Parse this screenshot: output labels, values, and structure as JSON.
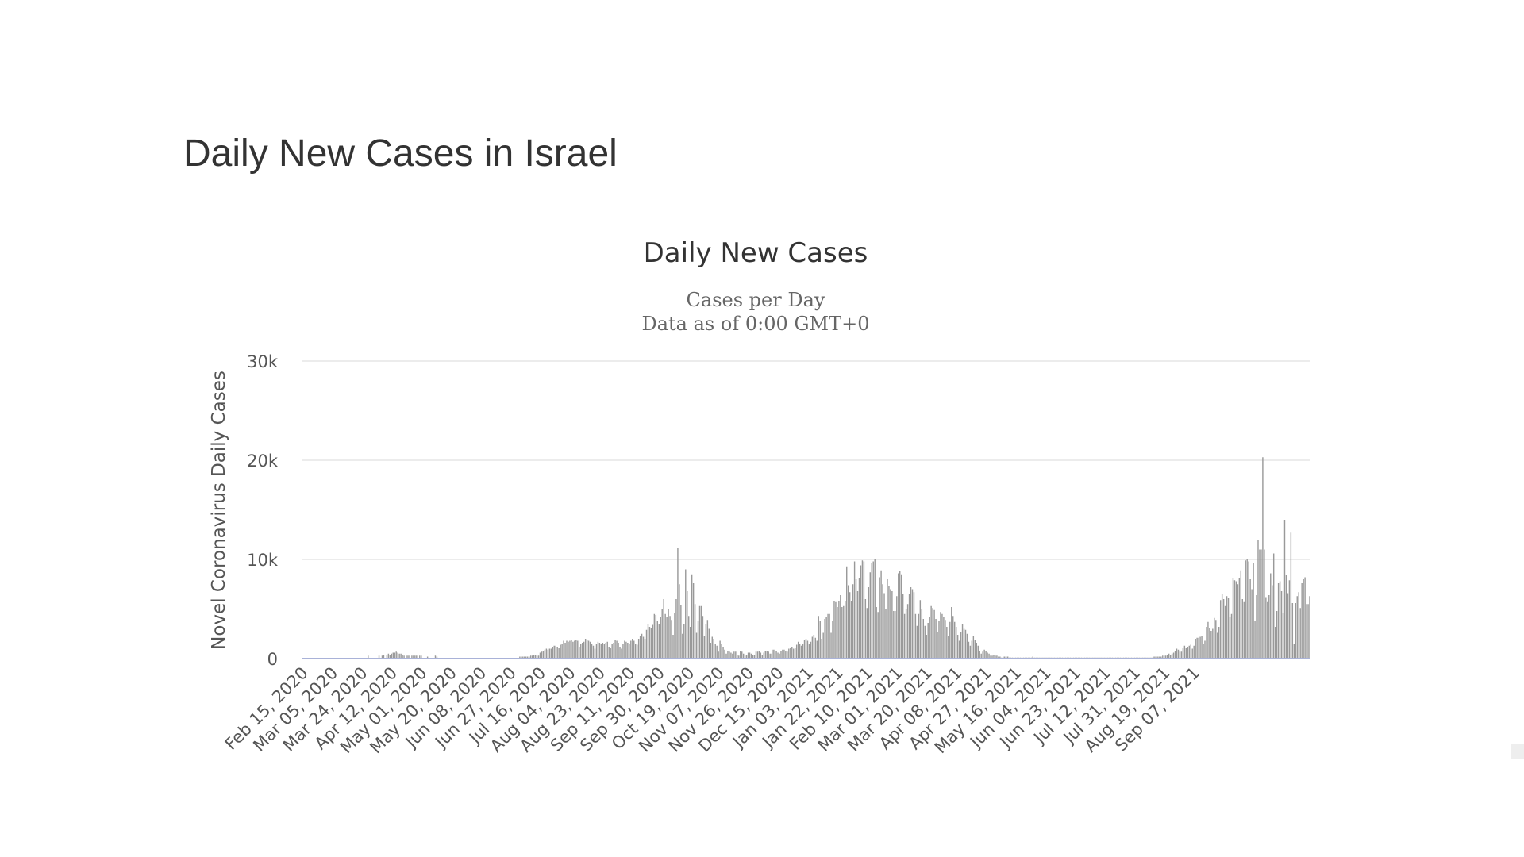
{
  "page": {
    "title": "Daily New Cases in Israel"
  },
  "chart_data": {
    "type": "bar",
    "title": "Daily New Cases",
    "subtitle_lines": [
      "Cases per Day",
      "Data as of 0:00 GMT+0"
    ],
    "ylabel": "Novel Coronavirus Daily Cases",
    "xlabel": "",
    "ylim": [
      0,
      30000
    ],
    "yticks": [
      {
        "value": 0,
        "label": "0"
      },
      {
        "value": 10000,
        "label": "10k"
      },
      {
        "value": 20000,
        "label": "20k"
      },
      {
        "value": 30000,
        "label": "30k"
      }
    ],
    "xtick_labels": [
      "Feb 15, 2020",
      "Mar 05, 2020",
      "Mar 24, 2020",
      "Apr 12, 2020",
      "May 01, 2020",
      "May 20, 2020",
      "Jun 08, 2020",
      "Jun 27, 2020",
      "Jul 16, 2020",
      "Aug 04, 2020",
      "Aug 23, 2020",
      "Sep 11, 2020",
      "Sep 30, 2020",
      "Oct 19, 2020",
      "Nov 07, 2020",
      "Nov 26, 2020",
      "Dec 15, 2020",
      "Jan 03, 2021",
      "Jan 22, 2021",
      "Feb 10, 2021",
      "Mar 01, 2021",
      "Mar 20, 2021",
      "Apr 08, 2021",
      "Apr 27, 2021",
      "May 16, 2021",
      "Jun 04, 2021",
      "Jun 23, 2021",
      "Jul 12, 2021",
      "Jul 31, 2021",
      "Aug 19, 2021",
      "Sep 07, 2021"
    ],
    "x_start": "Feb 15, 2020",
    "x_end": "Sep 23, 2021",
    "grid": true,
    "legend": "none",
    "bar_color": "#999999",
    "values": [
      0,
      0,
      0,
      0,
      0,
      0,
      0,
      0,
      0,
      0,
      0,
      0,
      0,
      0,
      0,
      0,
      0,
      0,
      0,
      0,
      0,
      0,
      0,
      0,
      0,
      0,
      0,
      0,
      0,
      0,
      0,
      0,
      0,
      0,
      0,
      0,
      0,
      0,
      0,
      0,
      0,
      0,
      300,
      0,
      0,
      0,
      0,
      0,
      0,
      300,
      0,
      300,
      400,
      0,
      400,
      500,
      400,
      500,
      600,
      600,
      700,
      600,
      500,
      500,
      400,
      300,
      0,
      300,
      300,
      0,
      300,
      300,
      300,
      300,
      0,
      300,
      300,
      0,
      0,
      0,
      200,
      0,
      0,
      0,
      0,
      300,
      200,
      0,
      0,
      0,
      0,
      0,
      0,
      0,
      0,
      0,
      0,
      0,
      0,
      0,
      0,
      0,
      0,
      0,
      0,
      0,
      0,
      0,
      0,
      0,
      0,
      0,
      0,
      0,
      0,
      0,
      0,
      0,
      0,
      0,
      0,
      0,
      0,
      0,
      0,
      0,
      0,
      0,
      0,
      0,
      0,
      0,
      0,
      0,
      0,
      0,
      0,
      0,
      0,
      200,
      200,
      200,
      200,
      200,
      200,
      200,
      300,
      300,
      400,
      400,
      300,
      300,
      600,
      700,
      800,
      900,
      1000,
      900,
      1000,
      1000,
      1200,
      1300,
      1300,
      1200,
      1100,
      1400,
      1500,
      1800,
      1600,
      1800,
      1700,
      1800,
      1900,
      1700,
      1800,
      1900,
      1800,
      1200,
      1500,
      1600,
      1700,
      2000,
      1900,
      1800,
      1700,
      1500,
      1300,
      1000,
      1500,
      1700,
      1600,
      1500,
      1600,
      1500,
      1600,
      1700,
      1200,
      1100,
      1500,
      1600,
      1900,
      1800,
      1600,
      1200,
      1000,
      1500,
      1800,
      1700,
      1600,
      1500,
      1800,
      2000,
      1800,
      1500,
      1400,
      2000,
      2300,
      2500,
      2200,
      2000,
      2900,
      3500,
      3200,
      3100,
      3400,
      4500,
      4400,
      3800,
      3500,
      4200,
      5000,
      6000,
      4500,
      4200,
      5000,
      4300,
      3900,
      2400,
      4600,
      6000,
      11200,
      7500,
      5400,
      2500,
      3500,
      9000,
      6800,
      4300,
      3200,
      8500,
      7600,
      5500,
      2600,
      3800,
      5300,
      5300,
      4300,
      2300,
      3500,
      3900,
      3000,
      1600,
      2200,
      2000,
      1500,
      1300,
      700,
      1800,
      1500,
      1200,
      900,
      500,
      800,
      700,
      600,
      500,
      700,
      700,
      400,
      300,
      800,
      700,
      500,
      300,
      400,
      600,
      600,
      500,
      400,
      400,
      700,
      700,
      800,
      600,
      400,
      600,
      800,
      800,
      700,
      500,
      500,
      900,
      900,
      800,
      600,
      500,
      800,
      900,
      900,
      800,
      700,
      1000,
      1100,
      1200,
      1000,
      1100,
      1400,
      1700,
      1500,
      1300,
      1500,
      1900,
      2000,
      1800,
      1500,
      1700,
      2200,
      2400,
      2100,
      1800,
      4300,
      3800,
      2000,
      2600,
      4000,
      4200,
      4500,
      4500,
      2600,
      3800,
      5800,
      5700,
      5200,
      5800,
      6400,
      5200,
      5300,
      5800,
      9300,
      7400,
      6700,
      5800,
      7500,
      9800,
      8000,
      6800,
      8100,
      9400,
      9900,
      9800,
      6000,
      5100,
      7200,
      8700,
      9600,
      9800,
      10000,
      5200,
      4700,
      8200,
      8900,
      7500,
      6600,
      5000,
      8000,
      7300,
      7000,
      6800,
      4800,
      4800,
      6300,
      8600,
      8800,
      8500,
      6500,
      4500,
      5000,
      5500,
      6500,
      7200,
      7000,
      6700,
      4500,
      3300,
      4500,
      5900,
      5000,
      4000,
      3300,
      2400,
      3600,
      4200,
      5300,
      5100,
      4900,
      4000,
      2700,
      3800,
      4700,
      4500,
      4200,
      3900,
      3200,
      2300,
      3700,
      5200,
      4300,
      3700,
      3200,
      2400,
      1800,
      2700,
      3500,
      3000,
      2900,
      2500,
      1700,
      1300,
      1800,
      2300,
      1900,
      1600,
      1300,
      800,
      500,
      700,
      900,
      800,
      600,
      500,
      300,
      300,
      400,
      300,
      300,
      200,
      200,
      100,
      200,
      200,
      200,
      200,
      100,
      100,
      100,
      100,
      100,
      100,
      100,
      100,
      100,
      100,
      100,
      100,
      100,
      100,
      100,
      200,
      100,
      100,
      100,
      100,
      100,
      100,
      100,
      100,
      100,
      100,
      100,
      100,
      100,
      100,
      100,
      100,
      100,
      100,
      100,
      100,
      100,
      100,
      100,
      100,
      100,
      100,
      100,
      100,
      100,
      100,
      100,
      100,
      100,
      100,
      100,
      100,
      100,
      100,
      100,
      100,
      100,
      100,
      100,
      100,
      100,
      100,
      100,
      100,
      100,
      100,
      100,
      100,
      100,
      100,
      100,
      100,
      100,
      100,
      100,
      100,
      100,
      100,
      100,
      100,
      100,
      100,
      100,
      100,
      100,
      100,
      100,
      100,
      100,
      100,
      100,
      100,
      200,
      200,
      200,
      200,
      200,
      200,
      300,
      300,
      300,
      400,
      500,
      400,
      500,
      600,
      800,
      1000,
      900,
      700,
      700,
      1100,
      1300,
      1100,
      1200,
      1300,
      1400,
      1000,
      1300,
      2000,
      2100,
      2100,
      2200,
      2300,
      1500,
      1800,
      3200,
      3700,
      3100,
      2800,
      3000,
      4100,
      3900,
      2600,
      3200,
      5900,
      6500,
      6000,
      5300,
      6300,
      6100,
      4200,
      4500,
      8100,
      7900,
      7800,
      7500,
      8100,
      8900,
      6000,
      5700,
      9900,
      10000,
      9800,
      8000,
      7000,
      9600,
      3800,
      6400,
      12000,
      11000,
      11000,
      20300,
      11000,
      6200,
      5700,
      6400,
      8600,
      7400,
      10600,
      3200,
      4800,
      7600,
      7800,
      6800,
      4600,
      14000,
      8400,
      6600,
      7900,
      12700,
      5600,
      1500,
      5600,
      6300,
      6700,
      5100,
      7600,
      8000,
      8200,
      5500,
      5500,
      6300
    ]
  }
}
